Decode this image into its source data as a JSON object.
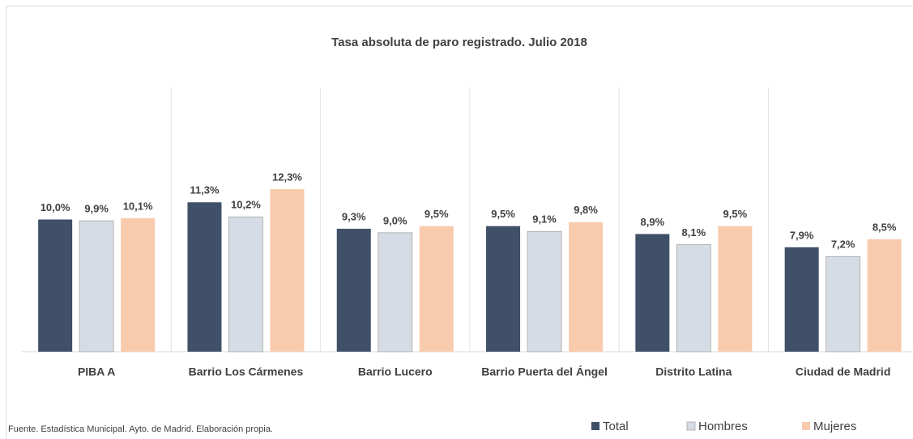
{
  "chart_data": {
    "type": "bar",
    "title": "Tasa absoluta de paro registrado. Julio 2018",
    "source": "Fuente. Estadística Municipal. Ayto. de Madrid. Elaboración propia.",
    "categories": [
      "PIBA A",
      "Barrio Los Cármenes",
      "Barrio Lucero",
      "Barrio Puerta del Ángel",
      "Distrito Latina",
      "Ciudad de Madrid"
    ],
    "series": [
      {
        "name": "Total",
        "color": "#3f5068",
        "values": [
          10.0,
          11.3,
          9.3,
          9.5,
          8.9,
          7.9
        ],
        "value_labels": [
          "10,0%",
          "11,3%",
          "9,3%",
          "9,5%",
          "8,9%",
          "7,9%"
        ]
      },
      {
        "name": "Hombres",
        "color": "#d6dce5",
        "values": [
          9.9,
          10.2,
          9.0,
          9.1,
          8.1,
          7.2
        ],
        "value_labels": [
          "9,9%",
          "10,2%",
          "9,0%",
          "9,1%",
          "8,1%",
          "7,2%"
        ]
      },
      {
        "name": "Mujeres",
        "color": "#f8cbad",
        "values": [
          10.1,
          12.3,
          9.5,
          9.8,
          9.5,
          8.5
        ],
        "value_labels": [
          "10,1%",
          "12,3%",
          "9,5%",
          "9,8%",
          "9,5%",
          "8,5%"
        ]
      }
    ],
    "ylim": [
      0,
      20
    ],
    "legend": "bottom-right"
  }
}
